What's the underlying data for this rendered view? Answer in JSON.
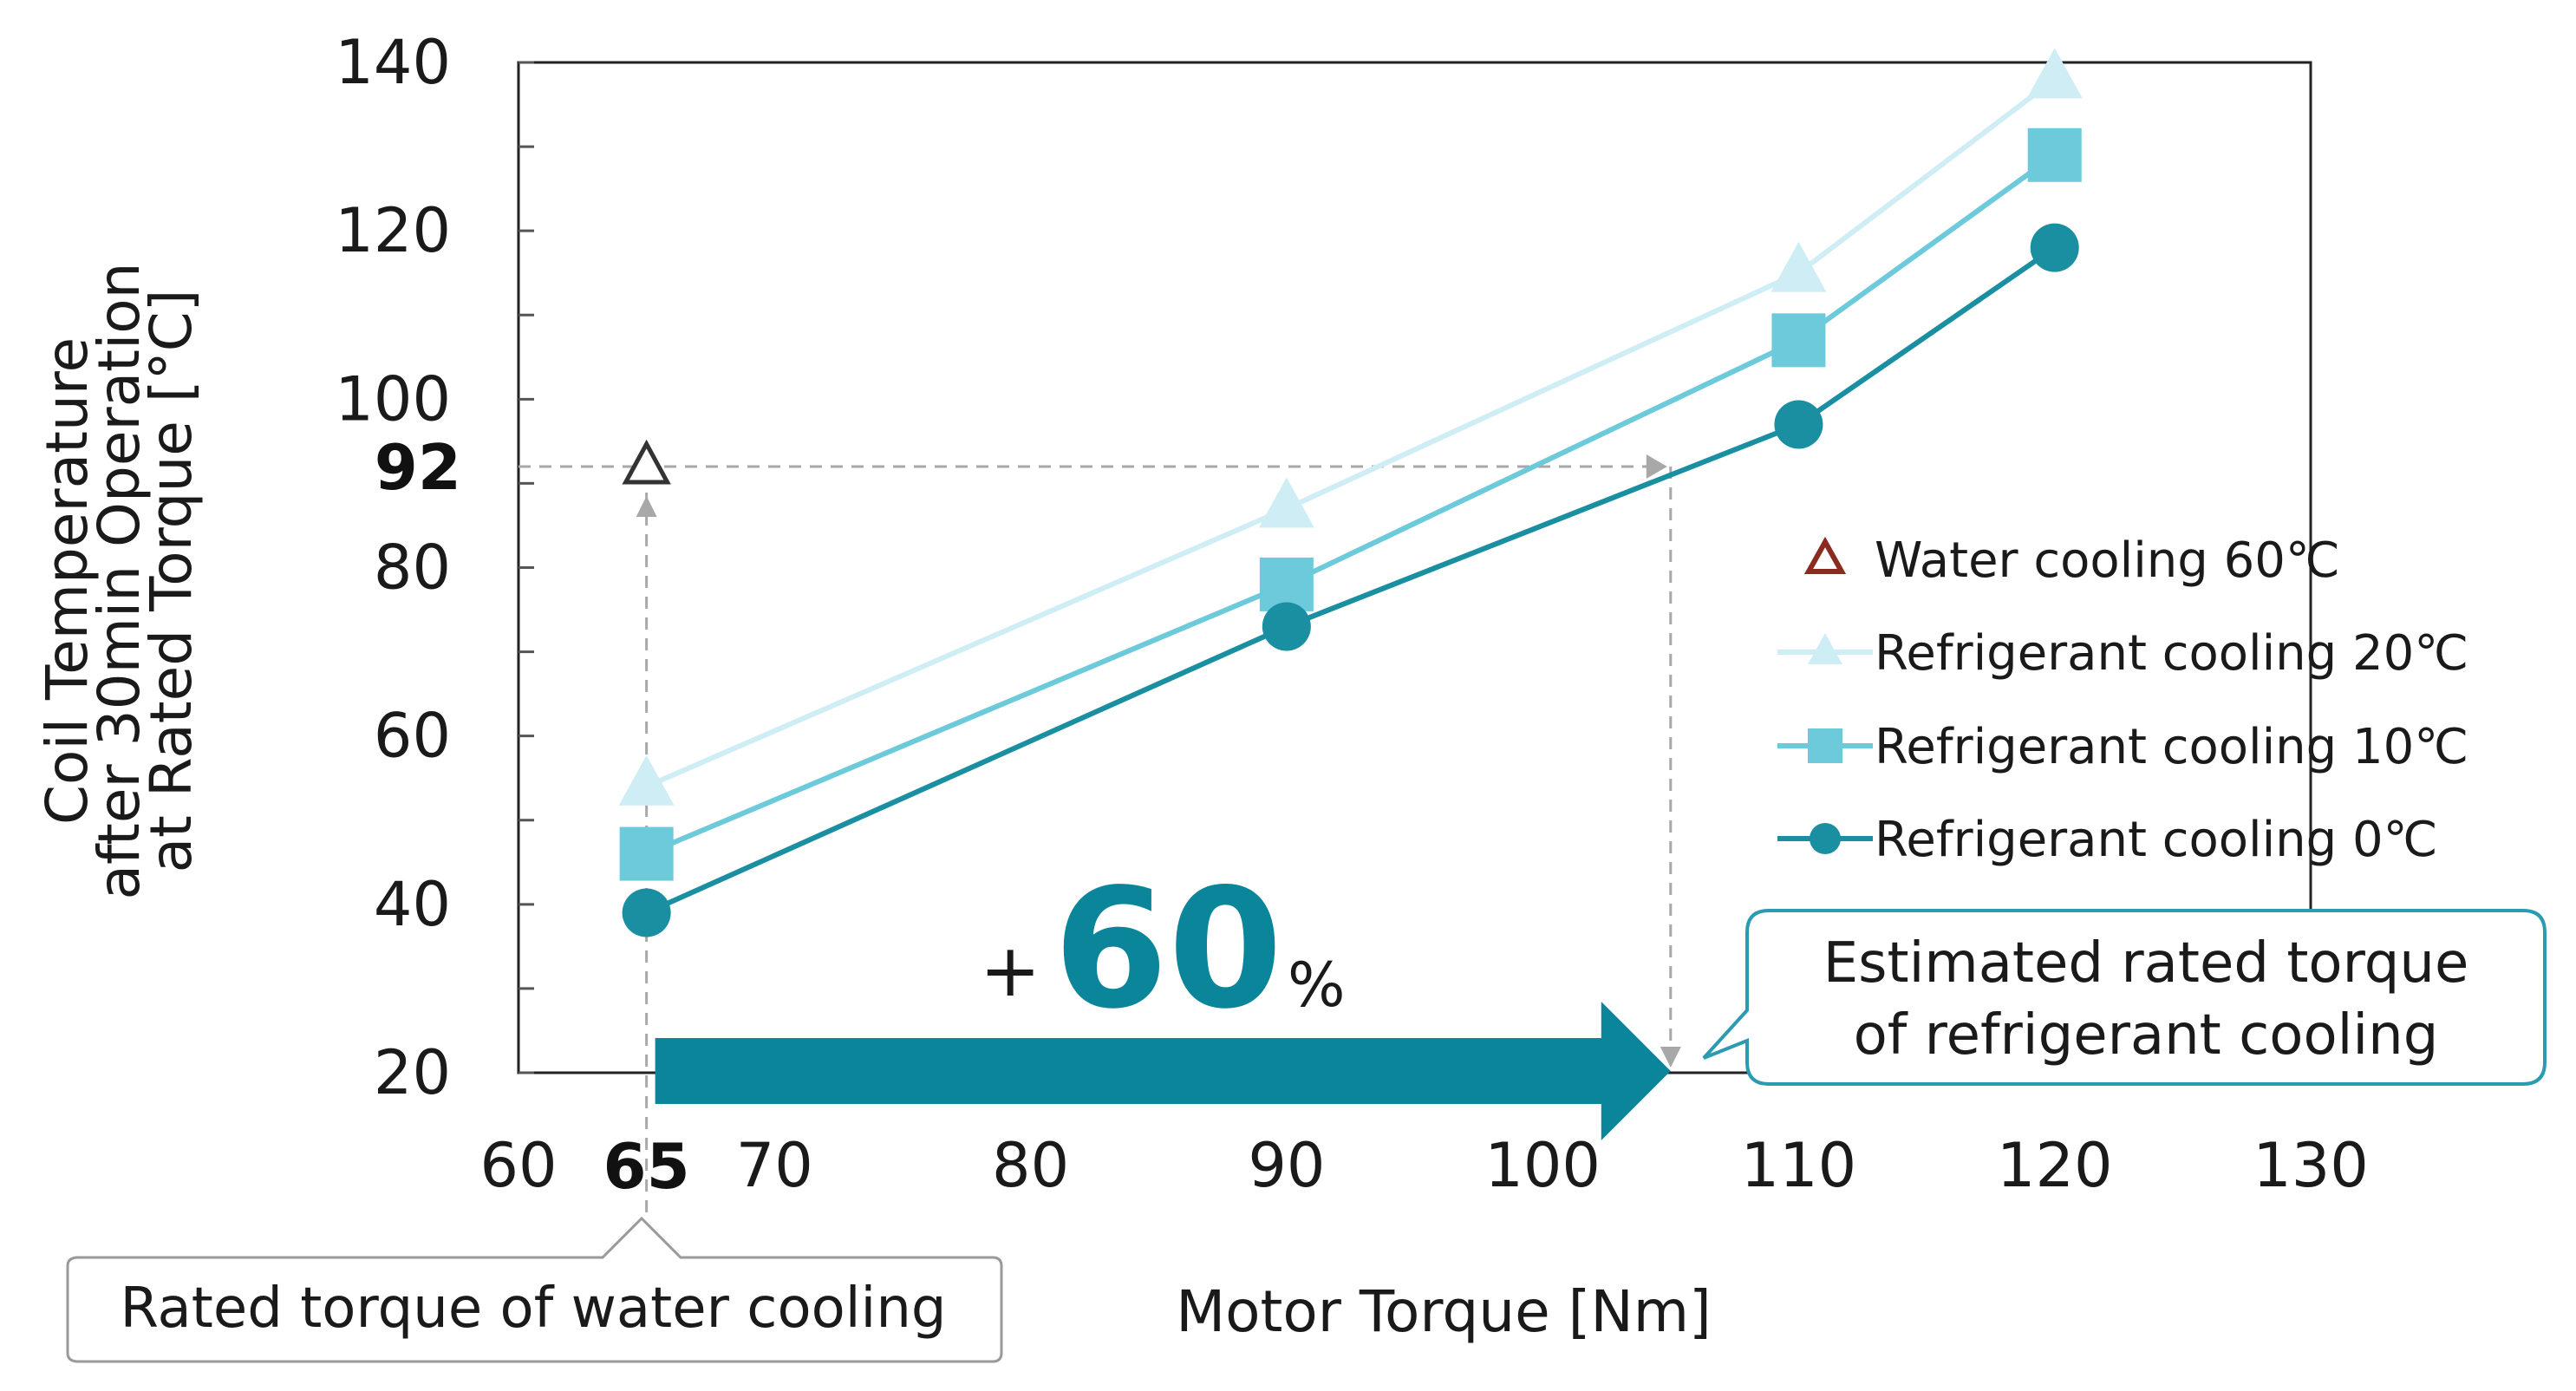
{
  "chart_data": {
    "type": "line",
    "xlabel": "Motor Torque [Nm]",
    "ylabel_lines": [
      "Coil Temperature",
      "after 30min Operation",
      "at Rated Torque [°C]"
    ],
    "xlim": [
      60,
      130
    ],
    "ylim": [
      20,
      140
    ],
    "x_ticks": [
      "60",
      "70",
      "80",
      "90",
      "100",
      "110",
      "120",
      "130"
    ],
    "y_ticks": [
      "20",
      "40",
      "60",
      "80",
      "100",
      "120",
      "140"
    ],
    "highlight_x_tick": "65",
    "highlight_y_tick": "92",
    "series": [
      {
        "name": "Water cooling 60℃",
        "marker": "open-triangle",
        "color": "#8b2a1e",
        "line": false,
        "x": [
          65
        ],
        "values": [
          92
        ]
      },
      {
        "name": "Refrigerant cooling 20℃",
        "marker": "triangle",
        "color": "#cfedf4",
        "line": true,
        "x": [
          65,
          90,
          110,
          120
        ],
        "values": [
          54,
          87,
          115,
          138
        ]
      },
      {
        "name": "Refrigerant cooling 10℃",
        "marker": "square",
        "color": "#6ccadb",
        "line": true,
        "x": [
          65,
          90,
          110,
          120
        ],
        "values": [
          46,
          78,
          107,
          129
        ]
      },
      {
        "name": "Refrigerant cooling 0℃",
        "marker": "circle",
        "color": "#1a8fa2",
        "line": true,
        "x": [
          65,
          90,
          110,
          120
        ],
        "values": [
          39,
          73,
          97,
          118
        ]
      }
    ],
    "reference_lines": {
      "temperature": 92,
      "x_from": 65,
      "x_to": 105
    },
    "arrow": {
      "x_from": 65,
      "x_to": 105,
      "label_prefix": "+",
      "label_value": "60",
      "label_suffix": "%"
    },
    "annotations": {
      "water_callout": "Rated torque of water cooling",
      "refrigerant_callout_lines": [
        "Estimated rated torque",
        "of refrigerant cooling"
      ]
    }
  },
  "colors": {
    "arrow": "#0a8599",
    "callout_border_refrigerant": "#2a9bb0",
    "callout_border_water": "#9a9a9a",
    "dashed": "#a8a8a8"
  }
}
